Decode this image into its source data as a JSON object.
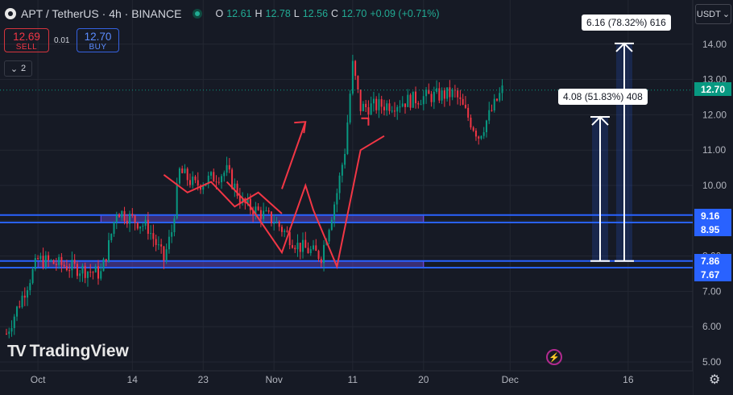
{
  "header": {
    "symbol": "APT / TetherUS · 4h · BINANCE",
    "ohlc": [
      {
        "k": "O",
        "v": "12.61"
      },
      {
        "k": "H",
        "v": "12.78"
      },
      {
        "k": "L",
        "v": "12.56"
      },
      {
        "k": "C",
        "v": "12.70"
      }
    ],
    "change": "+0.09 (+0.71%)"
  },
  "trade": {
    "sell_price": "12.69",
    "sell_label": "SELL",
    "spread": "0.01",
    "buy_price": "12.70",
    "buy_label": "BUY"
  },
  "indicators_toggle": "2",
  "currency": "USDT",
  "price_tags": {
    "last": "12.70",
    "zone1_top": "9.16",
    "zone1_bottom": "8.95",
    "zone2_top": "7.86",
    "zone2_bottom": "7.67"
  },
  "measures": {
    "short": "4.08 (51.83%) 408",
    "long": "6.16 (78.32%) 616"
  },
  "branding": "TradingView",
  "colors": {
    "up": "#089981",
    "down": "#f23645",
    "zone_line": "#2962ff",
    "zone_fill": "#5b3fb5",
    "pattern": "#f23645",
    "measure": "#ffffff"
  },
  "chart_data": {
    "type": "candlestick",
    "y_ticks": [
      "5.00",
      "6.00",
      "7.00",
      "8.00",
      "9.00",
      "10.00",
      "11.00",
      "12.00",
      "13.00",
      "14.00"
    ],
    "ylim": [
      4.9,
      15.0
    ],
    "x_ticks": [
      "Oct",
      "14",
      "23",
      "Nov",
      "11",
      "20",
      "Dec",
      "16"
    ],
    "price_path": [
      {
        "x": "Sep 28",
        "y": 5.8
      },
      {
        "x": "Oct 2",
        "y": 7.9
      },
      {
        "x": "Oct 6",
        "y": 7.7
      },
      {
        "x": "Oct 10",
        "y": 7.5
      },
      {
        "x": "Oct 11",
        "y": 8.3
      },
      {
        "x": "Oct 12",
        "y": 9.3
      },
      {
        "x": "Oct 16",
        "y": 8.8
      },
      {
        "x": "Oct 18",
        "y": 7.9
      },
      {
        "x": "Oct 19",
        "y": 8.7
      },
      {
        "x": "Oct 20",
        "y": 10.4
      },
      {
        "x": "Oct 22",
        "y": 10.0
      },
      {
        "x": "Oct 26",
        "y": 10.4
      },
      {
        "x": "Oct 28",
        "y": 9.5
      },
      {
        "x": "Nov 1",
        "y": 9.0
      },
      {
        "x": "Nov 4",
        "y": 8.3
      },
      {
        "x": "Nov 7",
        "y": 8.0
      },
      {
        "x": "Nov 9",
        "y": 9.8
      },
      {
        "x": "Nov 10",
        "y": 11.0
      },
      {
        "x": "Nov 11",
        "y": 13.4
      },
      {
        "x": "Nov 12",
        "y": 12.2
      },
      {
        "x": "Nov 16",
        "y": 12.3
      },
      {
        "x": "Nov 20",
        "y": 12.5
      },
      {
        "x": "Nov 24",
        "y": 12.6
      },
      {
        "x": "Nov 27",
        "y": 11.4
      },
      {
        "x": "Nov 30",
        "y": 12.7
      }
    ],
    "zones": [
      {
        "top": 9.16,
        "bottom": 8.95
      },
      {
        "top": 7.86,
        "bottom": 7.67
      }
    ],
    "last_price": 12.7
  }
}
